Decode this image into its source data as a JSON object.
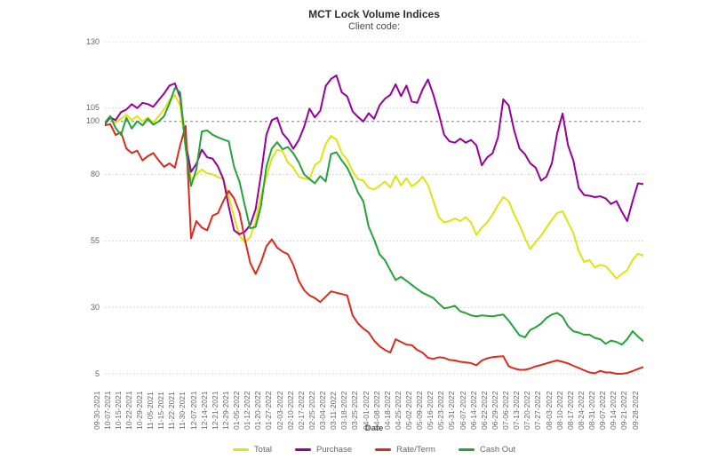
{
  "title": "MCT Lock Volume Indices",
  "subtitle": "Client code:",
  "xlabel": "Date",
  "colors": {
    "grid_light": "#cdcdcd",
    "grid_baseline": "#9a9a9a",
    "axis_text": "#666666",
    "title_text": "#2d2d2d"
  },
  "chart_data": {
    "type": "line",
    "title": "MCT Lock Volume Indices",
    "subtitle": "Client code:",
    "xlabel": "Date",
    "ylim": [
      5,
      130
    ],
    "y_ticks": [
      130,
      105,
      100,
      80,
      55,
      30,
      5
    ],
    "baseline": 100,
    "grid": "horizontal-dotted",
    "legend_position": "bottom",
    "points_per_week": 2,
    "x_tick_labels": [
      "09-30-2021",
      "10-07-2021",
      "10-15-2021",
      "10-22-2021",
      "10-29-2021",
      "11-05-2021",
      "11-15-2021",
      "11-22-2021",
      "11-30-2021",
      "12-07-2021",
      "12-14-2021",
      "12-21-2021",
      "12-29-2021",
      "01-05-2022",
      "01-12-2022",
      "01-20-2022",
      "01-27-2022",
      "02-03-2022",
      "02-10-2022",
      "02-17-2022",
      "02-25-2022",
      "03-04-2022",
      "03-11-2022",
      "03-18-2022",
      "03-25-2022",
      "04-01-2022",
      "04-08-2022",
      "04-18-2022",
      "04-25-2022",
      "05-02-2022",
      "05-09-2022",
      "05-16-2022",
      "05-23-2022",
      "05-31-2022",
      "06-07-2022",
      "06-14-2022",
      "06-22-2022",
      "06-29-2022",
      "07-06-2022",
      "07-13-2022",
      "07-20-2022",
      "07-27-2022",
      "08-03-2022",
      "08-10-2022",
      "08-17-2022",
      "08-24-2022",
      "08-31-2022",
      "09-07-2022",
      "09-14-2022",
      "09-21-2022",
      "09-28-2022"
    ],
    "series": [
      {
        "name": "Total",
        "color": "#e2e210",
        "values": [
          99,
          101.5,
          99.5,
          101,
          102.5,
          100.5,
          102,
          100,
          101.5,
          99.5,
          102,
          104.5,
          108,
          109.9,
          106,
          90,
          78,
          80,
          81.9,
          80.5,
          80.1,
          79,
          78.3,
          72,
          64,
          57,
          54.5,
          56.5,
          62.5,
          72,
          79.2,
          86,
          89.4,
          88.7,
          84.6,
          82.6,
          79.2,
          78.5,
          78.3,
          83.6,
          85,
          91.5,
          94.5,
          93.2,
          88.1,
          85.6,
          81.2,
          78.3,
          77.7,
          75,
          74.4,
          75.7,
          77.4,
          75.2,
          79.5,
          76,
          78.6,
          75.5,
          77,
          79.2,
          76,
          70,
          64,
          62,
          62.5,
          63.5,
          62.5,
          64,
          62,
          57.3,
          60,
          62,
          65,
          68.5,
          71.5,
          70,
          65,
          61,
          56,
          52,
          54.6,
          57,
          60,
          63,
          65.5,
          66.2,
          62,
          58,
          51.2,
          47.1,
          47.8,
          45,
          46,
          45.5,
          43.3,
          40.9,
          42.6,
          44,
          47.8,
          50.2,
          49.5
        ]
      },
      {
        "name": "Purchase",
        "color": "#990099",
        "values": [
          99,
          101.5,
          100.5,
          103.5,
          104.5,
          106.5,
          105,
          107,
          106.5,
          105.5,
          108,
          110.5,
          113.5,
          114.3,
          109,
          92,
          81,
          84,
          89.4,
          86.5,
          86,
          83,
          78.3,
          68,
          59,
          57.5,
          58.5,
          61,
          67,
          80,
          95,
          100.5,
          101.4,
          95.5,
          93.2,
          89.7,
          93,
          97.9,
          104.8,
          101.5,
          104,
          113.3,
          116,
          117.3,
          110.9,
          109.4,
          103.8,
          101.7,
          100,
          103.1,
          101,
          106,
          108.5,
          110,
          114,
          109.5,
          113.5,
          107.5,
          107,
          112,
          115.8,
          110,
          103,
          95,
          92.5,
          92,
          93.5,
          92,
          93,
          91,
          83.5,
          86.5,
          88,
          94,
          108.3,
          106,
          96.6,
          89.8,
          87.7,
          84.2,
          82.6,
          77.7,
          79.2,
          84.2,
          95.5,
          103,
          91,
          85.3,
          75,
          72.3,
          72,
          71.5,
          71.8,
          71,
          68.9,
          70,
          66,
          62.5,
          70,
          76.7,
          76.4
        ]
      },
      {
        "name": "Rate/Term",
        "color": "#dc2a1e",
        "values": [
          98.5,
          99,
          94.9,
          95.9,
          89.8,
          88.1,
          89,
          85.3,
          87,
          88.1,
          85.3,
          82.9,
          84.2,
          82.6,
          91.1,
          98.3,
          56,
          62.5,
          60,
          59,
          64.5,
          65.5,
          70,
          73.9,
          71,
          65.8,
          55.6,
          46.7,
          42.6,
          47,
          53,
          55.6,
          52.5,
          51,
          50,
          46,
          40,
          36.5,
          34.5,
          33.5,
          32,
          34,
          36,
          35.5,
          35,
          34.5,
          27,
          24,
          22,
          20.5,
          17.5,
          15.4,
          14,
          13,
          18,
          17,
          16,
          15.8,
          14,
          13,
          11,
          10.6,
          11.2,
          11,
          10.2,
          10,
          9.5,
          9.3,
          9,
          8.2,
          10,
          10.8,
          11.3,
          11.5,
          11.6,
          7.8,
          7,
          6.5,
          6.5,
          7,
          7.8,
          8.3,
          8.9,
          9.5,
          10,
          9.5,
          8.9,
          8,
          7.2,
          6.3,
          5.5,
          5.2,
          6.1,
          5.5,
          5.5,
          5,
          5,
          5.3,
          6,
          6.8,
          7.5
        ]
      },
      {
        "name": "Cash Out",
        "color": "#22a438",
        "values": [
          99.5,
          102,
          97.5,
          94.9,
          101.4,
          97.3,
          100.1,
          98.5,
          101,
          98.8,
          100,
          102,
          106.8,
          112.6,
          110.9,
          90,
          75.7,
          82,
          96.2,
          96.6,
          95,
          94,
          93.2,
          92.5,
          82.9,
          77.3,
          68.2,
          59.7,
          60.3,
          68.2,
          83,
          89.8,
          92.2,
          89.5,
          90.4,
          88,
          84.6,
          80.1,
          78.3,
          76.7,
          79.4,
          77.4,
          87.7,
          88.4,
          85.3,
          82.6,
          78.3,
          73.3,
          69.9,
          60.3,
          55.6,
          50,
          47.8,
          44,
          40.3,
          41.5,
          40,
          38.5,
          36.9,
          35.5,
          34.5,
          33.5,
          31.5,
          29.6,
          30,
          30.6,
          28.5,
          27.9,
          27,
          26.6,
          27,
          26.8,
          26.6,
          27,
          27.3,
          25,
          22.2,
          19.5,
          18.7,
          21.5,
          22.5,
          23.9,
          26,
          27.3,
          27.9,
          26.5,
          22.9,
          21,
          20.5,
          19.7,
          19.7,
          18.5,
          18,
          16.3,
          17.5,
          17,
          16,
          18,
          21,
          19,
          17.3
        ]
      }
    ]
  }
}
